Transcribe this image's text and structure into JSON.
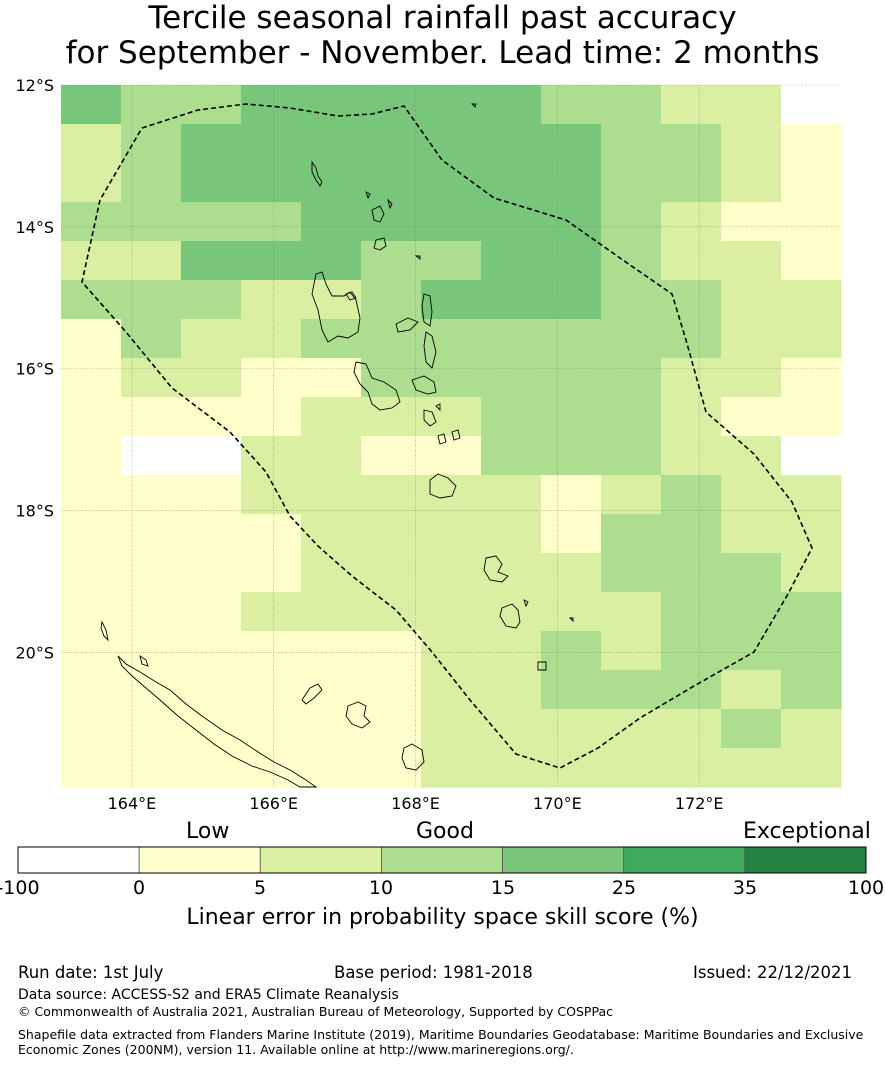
{
  "title_line1": "Tercile seasonal rainfall past accuracy",
  "title_line2": "for September - November. Lead time: 2 months",
  "map": {
    "lon_range": [
      163,
      174
    ],
    "lat_range": [
      -21.9,
      -12
    ],
    "lat_ticks": [
      {
        "value": -12,
        "label": "12°S"
      },
      {
        "value": -14,
        "label": "14°S"
      },
      {
        "value": -16,
        "label": "16°S"
      },
      {
        "value": -18,
        "label": "18°S"
      },
      {
        "value": -20,
        "label": "20°S"
      }
    ],
    "lon_ticks": [
      {
        "value": 164,
        "label": "164°E"
      },
      {
        "value": 166,
        "label": "166°E"
      },
      {
        "value": 168,
        "label": "168°E"
      },
      {
        "value": 170,
        "label": "170°E"
      },
      {
        "value": 172,
        "label": "172°E"
      }
    ],
    "grid_cols": 13,
    "grid_rows": 18,
    "skill_classes": [
      "AACCCCCCBBBAZZ",
      "ABCCCCCCCBBBZZ"
    ],
    "skill_grid": [
      "4334444433220",
      "2344444443321",
      "2344444443321",
      "3333444443211",
      "2244433443221",
      "3332234443322",
      "1322333333322",
      "1221133333221",
      "1111222333211",
      "1002211333220",
      "1112222212322",
      "1111222213322",
      "1111222223332",
      "1112222222333",
      "1111112232333",
      "1111112233323",
      "1111112222232",
      "1111112222222"
    ],
    "colors": {
      "0": "#ffffff",
      "1": "#ffffcc",
      "2": "#d9f0a3",
      "3": "#addd8e",
      "4": "#78c679",
      "5": "#41ab5d",
      "6": "#238443",
      "land_outline": "#000000",
      "eez_outline": "#000000"
    }
  },
  "colorbar": {
    "category_low": "Low",
    "category_good": "Good",
    "category_exceptional": "Exceptional",
    "ticks": [
      "-100",
      "0",
      "5",
      "10",
      "15",
      "25",
      "35",
      "100"
    ],
    "bins": [
      {
        "from": -100,
        "to": 0,
        "color": "#ffffff"
      },
      {
        "from": 0,
        "to": 5,
        "color": "#ffffcc"
      },
      {
        "from": 5,
        "to": 10,
        "color": "#d9f0a3"
      },
      {
        "from": 10,
        "to": 15,
        "color": "#addd8e"
      },
      {
        "from": 15,
        "to": 25,
        "color": "#78c679"
      },
      {
        "from": 25,
        "to": 35,
        "color": "#41ab5d"
      },
      {
        "from": 35,
        "to": 100,
        "color": "#238443"
      }
    ],
    "axis_label": "Linear error in probability space skill score (%)"
  },
  "footer": {
    "run_date": "Run date: 1st July",
    "base_period": "Base period: 1981-2018",
    "issued": "Issued: 22/12/2021",
    "data_source": "Data source: ACCESS-S2 and ERA5 Climate Reanalysis",
    "copyright": "© Commonwealth of Australia 2021, Australian Bureau of Meteorology, Supported by COSPPac",
    "shapefile_line1": "Shapefile data extracted from Flanders Marine Institute (2019), Maritime Boundaries Geodatabase: Maritime Boundaries and Exclusive",
    "shapefile_line2": "Economic Zones (200NM), version 11. Available online at http://www.marineregions.org/."
  }
}
